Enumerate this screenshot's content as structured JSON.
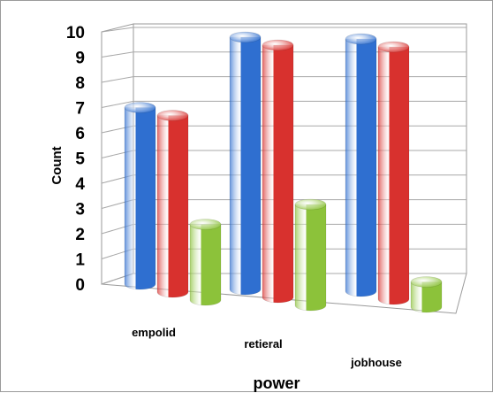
{
  "chart_data": {
    "type": "bar",
    "categories": [
      "empolid",
      "retieral",
      "jobhouse"
    ],
    "series": [
      {
        "values": [
          7,
          10,
          10
        ],
        "color": "#2f6fd0"
      },
      {
        "values": [
          7,
          10,
          10
        ],
        "color": "#d8312e"
      },
      {
        "values": [
          3,
          4,
          1
        ],
        "color": "#8cc23a"
      }
    ],
    "xlabel": "power",
    "ylabel": "Count",
    "ylim": [
      0,
      10
    ],
    "yticks": [
      "0",
      "1",
      "2",
      "3",
      "4",
      "5",
      "6",
      "7",
      "8",
      "9",
      "10"
    ],
    "grid": true,
    "style": "3d-cylinder"
  }
}
